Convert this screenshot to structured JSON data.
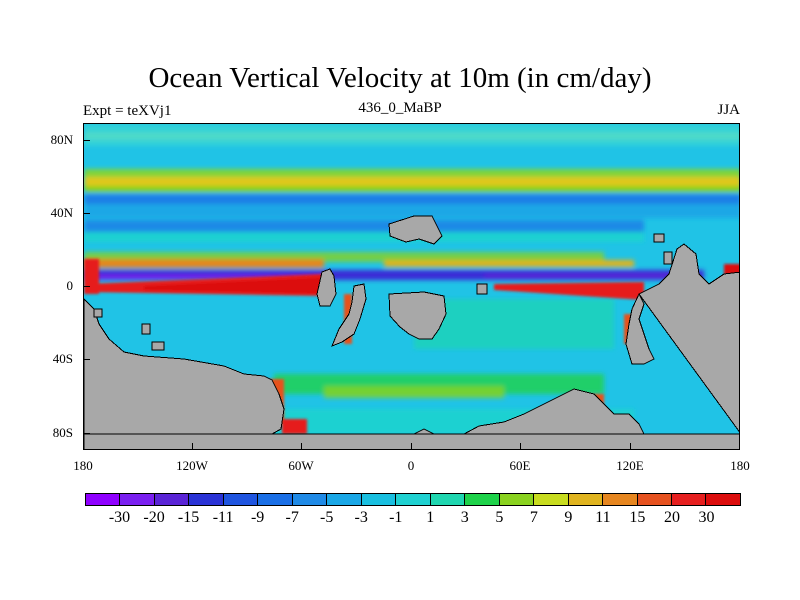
{
  "title": "Ocean Vertical Velocity at 10m (in cm/day)",
  "subtitle_left": "Expt = teXVj1",
  "subtitle_center": "436_0_MaBP",
  "subtitle_right": "JJA",
  "y_tick_labels": [
    "80N",
    "40N",
    "0",
    "40S",
    "80S"
  ],
  "x_tick_labels": [
    "180",
    "120W",
    "60W",
    "0",
    "60E",
    "120E",
    "180"
  ],
  "colorbar": {
    "labels": [
      "-30",
      "-20",
      "-15",
      "-11",
      "-9",
      "-7",
      "-5",
      "-3",
      "-1",
      "1",
      "3",
      "5",
      "7",
      "9",
      "11",
      "15",
      "20",
      "30"
    ],
    "colors": [
      "#8f00ff",
      "#7a1ff0",
      "#5a24d6",
      "#2a33d6",
      "#1f55e0",
      "#1a6fe6",
      "#1f8ae6",
      "#1aa7e6",
      "#19bfe0",
      "#1fd1d1",
      "#1fd6b0",
      "#1ed24a",
      "#8ad21f",
      "#c8dc1f",
      "#e0b41f",
      "#e6861f",
      "#e6521f",
      "#e61f1f",
      "#dc0d0d"
    ]
  },
  "colors": {
    "ocean_base": "#20c3e6",
    "land": "#a8a8a8"
  }
}
